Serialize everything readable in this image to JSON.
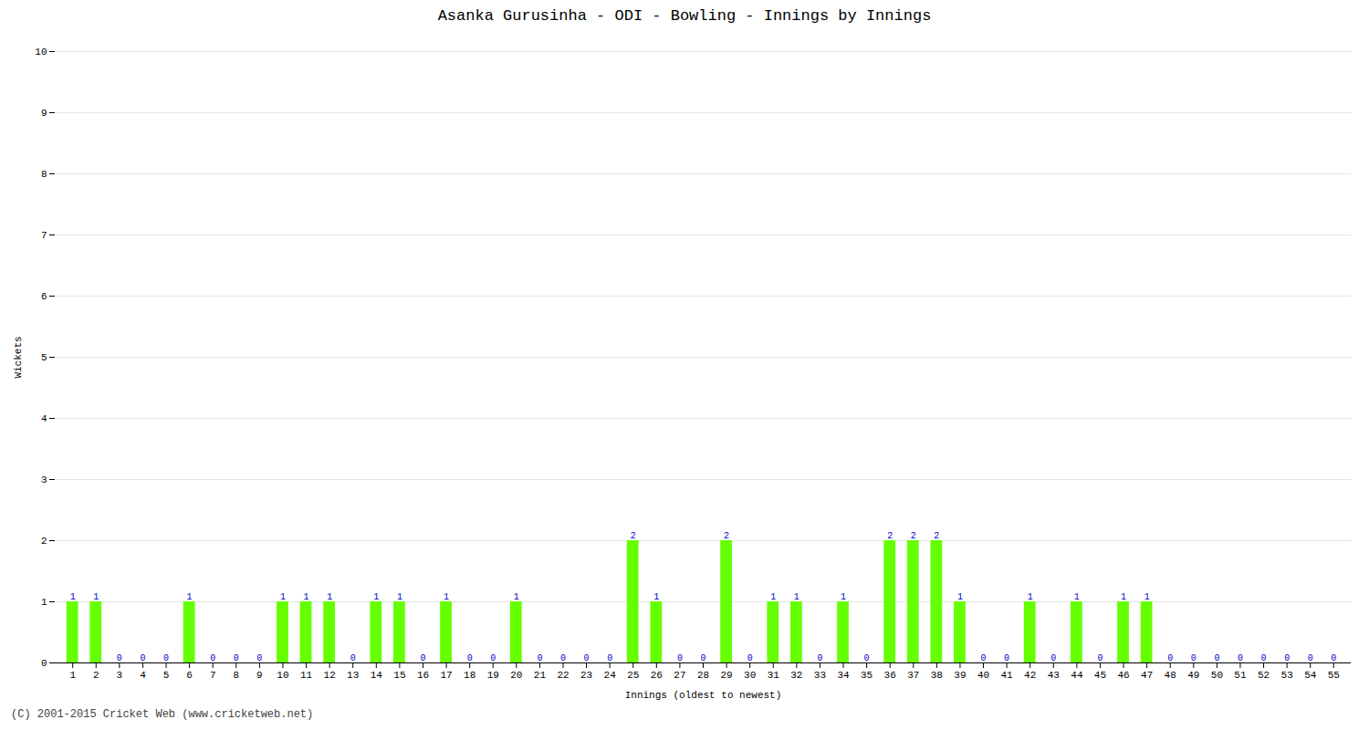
{
  "chart_data": {
    "type": "bar",
    "title": "Asanka Gurusinha - ODI - Bowling - Innings by Innings",
    "xlabel": "Innings (oldest to newest)",
    "ylabel": "Wickets",
    "categories": [
      "1",
      "2",
      "3",
      "4",
      "5",
      "6",
      "7",
      "8",
      "9",
      "10",
      "11",
      "12",
      "13",
      "14",
      "15",
      "16",
      "17",
      "18",
      "19",
      "20",
      "21",
      "22",
      "23",
      "24",
      "25",
      "26",
      "27",
      "28",
      "29",
      "30",
      "31",
      "32",
      "33",
      "34",
      "35",
      "36",
      "37",
      "38",
      "39",
      "40",
      "41",
      "42",
      "43",
      "44",
      "45",
      "46",
      "47",
      "48",
      "49",
      "50",
      "51",
      "52",
      "53",
      "54",
      "55"
    ],
    "values": [
      1,
      1,
      0,
      0,
      0,
      1,
      0,
      0,
      0,
      1,
      1,
      1,
      0,
      1,
      1,
      0,
      1,
      0,
      0,
      1,
      0,
      0,
      0,
      0,
      2,
      1,
      0,
      0,
      2,
      0,
      1,
      1,
      0,
      1,
      0,
      2,
      2,
      2,
      1,
      0,
      0,
      1,
      0,
      1,
      0,
      1,
      1,
      0,
      0,
      0,
      0,
      0,
      0,
      0,
      0
    ],
    "color": "#66ff00",
    "ylim": [
      0,
      10
    ],
    "yticks": [
      0,
      1,
      2,
      3,
      4,
      5,
      6,
      7,
      8,
      9,
      10
    ],
    "grid": true,
    "data_labels": true,
    "annotations": [
      "(C) 2001-2015 Cricket Web (www.cricketweb.net)"
    ]
  }
}
